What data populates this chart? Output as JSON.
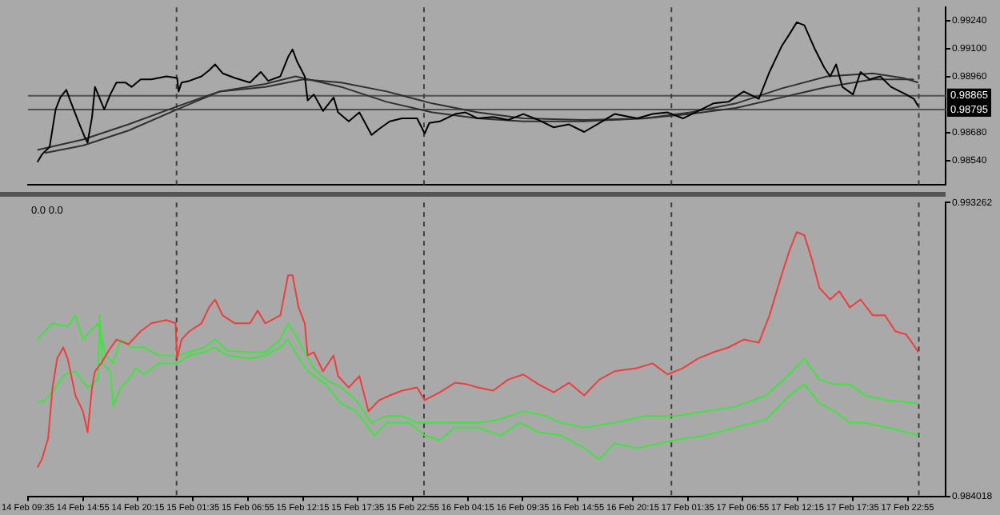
{
  "chart_data": [
    {
      "type": "line",
      "xlim": [
        "--02-14T09:35",
        "--02-18T02:36"
      ],
      "ylim": [
        0.98419,
        0.99308
      ],
      "tick_labels": "y",
      "xticks": [
        {
          "value": "--02-14T09:35",
          "label": null
        },
        {
          "value": "--02-18T02:36",
          "label": null
        }
      ],
      "yticks": [
        {
          "value": 0.9924,
          "label": "0.99240"
        },
        {
          "value": 0.991,
          "label": "0.99100"
        },
        {
          "value": 0.9896,
          "label": "0.98960"
        },
        {
          "value": 0.9868,
          "label": "0.98680"
        },
        {
          "value": 0.9854,
          "label": "0.98540"
        }
      ],
      "ref_lines": [
        {
          "axis": "y",
          "value": 0.98865,
          "label": "0.98865",
          "color": "#505050"
        },
        {
          "axis": "y",
          "value": 0.98795,
          "label": "0.98795",
          "color": "#505050"
        },
        {
          "axis": "x",
          "value": "--02-15T00:00",
          "line_style": "dashed",
          "color": "#404040"
        },
        {
          "axis": "x",
          "value": "--02-16T00:00",
          "line_style": "dashed",
          "color": "#404040"
        },
        {
          "axis": "x",
          "value": "--02-17T00:00",
          "line_style": "dashed",
          "color": "#404040"
        },
        {
          "axis": "x",
          "value": "--02-18T00:00",
          "line_style": "dashed",
          "color": "#404040"
        }
      ],
      "series": [
        {
          "color": "#000000",
          "x": [
            "--02-14T10:30",
            "--02-14T10:56",
            "--02-14T11:41",
            "--02-14T12:16",
            "--02-14T12:43",
            "--02-14T13:18",
            "--02-14T13:44",
            "--02-14T14:28",
            "--02-14T15:04",
            "--02-14T15:22",
            "--02-14T15:48",
            "--02-14T16:05",
            "--02-14T16:23",
            "--02-14T16:59",
            "--02-14T17:34",
            "--02-14T18:10",
            "--02-14T19:02",
            "--02-14T19:38",
            "--02-14T20:31",
            "--02-14T21:33",
            "--02-14T23:01",
            "--02-15T00:03",
            "--02-15T00:12",
            "--02-15T00:29",
            "--02-15T01:14",
            "--02-15T02:25",
            "--02-15T03:09",
            "--02-15T03:44",
            "--02-15T04:28",
            "--02-15T05:39",
            "--02-15T07:07",
            "--02-15T08:10",
            "--02-15T08:53",
            "--02-15T10:04",
            "--02-15T10:49",
            "--02-15T11:15",
            "--02-15T11:41",
            "--02-15T12:26",
            "--02-15T12:43",
            "--02-15T13:19",
            "--02-15T14:12",
            "--02-15T15:14",
            "--02-15T15:40",
            "--02-15T16:42",
            "--02-15T17:44",
            "--02-15T18:55",
            "--02-15T19:39",
            "--02-15T20:41",
            "--02-15T21:52",
            "--02-15T23:20",
            "--02-16T00:04",
            "--02-16T00:31",
            "--02-16T01:32",
            "--02-16T03:01",
            "--02-16T04:02",
            "--02-16T05:13",
            "--02-16T06:42",
            "--02-16T08:10",
            "--02-16T09:38",
            "--02-16T11:07",
            "--02-16T12:35",
            "--02-16T14:04",
            "--02-16T15:32",
            "--02-16T17:01",
            "--02-16T18:29",
            "--02-16T20:41",
            "--02-16T22:10",
            "--02-16T23:38",
            "--02-17T01:07",
            "--02-17T02:35",
            "--02-17T04:04",
            "--02-17T05:32",
            "--02-17T07:01",
            "--02-17T08:29",
            "--02-17T09:31",
            "--02-17T10:41",
            "--02-17T11:26",
            "--02-17T12:10",
            "--02-17T12:54",
            "--02-17T13:56",
            "--02-17T14:49",
            "--02-17T15:24",
            "--02-17T15:59",
            "--02-17T16:35",
            "--02-17T17:37",
            "--02-17T18:21",
            "--02-17T19:14",
            "--02-17T20:16",
            "--02-17T21:18",
            "--02-17T22:11",
            "--02-17T22:46",
            "--02-17T23:31",
            "--02-17T23:57"
          ],
          "values": [
            0.98532,
            0.9857,
            0.98608,
            0.98796,
            0.98856,
            0.98894,
            0.98834,
            0.98736,
            0.9866,
            0.9863,
            0.98758,
            0.98909,
            0.98871,
            0.98796,
            0.98871,
            0.98931,
            0.98931,
            0.98909,
            0.98947,
            0.98947,
            0.98962,
            0.98954,
            0.98886,
            0.98931,
            0.98939,
            0.98962,
            0.98992,
            0.99022,
            0.98977,
            0.98954,
            0.98931,
            0.98984,
            0.98939,
            0.98962,
            0.99059,
            0.99097,
            0.99037,
            0.98962,
            0.98841,
            0.98871,
            0.98788,
            0.98856,
            0.98781,
            0.98736,
            0.98781,
            0.98668,
            0.98698,
            0.98736,
            0.98751,
            0.98751,
            0.98675,
            0.98728,
            0.98736,
            0.98773,
            0.98781,
            0.98751,
            0.98758,
            0.98743,
            0.98773,
            0.98743,
            0.98706,
            0.98721,
            0.98683,
            0.98728,
            0.98773,
            0.98751,
            0.98773,
            0.98781,
            0.98751,
            0.98788,
            0.98826,
            0.98834,
            0.98886,
            0.98849,
            0.98984,
            0.99112,
            0.99172,
            0.99233,
            0.99218,
            0.99097,
            0.99007,
            0.98962,
            0.99022,
            0.98909,
            0.98871,
            0.98984,
            0.98947,
            0.98962,
            0.98909,
            0.98886,
            0.98871,
            0.98849,
            0.98811
          ]
        },
        {
          "color": "#303030",
          "x": [
            "--02-14T10:30",
            "--02-14T14:55",
            "--02-14T19:20",
            "--02-15T00:03",
            "--02-15T04:11",
            "--02-15T08:36",
            "--02-15T11:32",
            "--02-15T15:58",
            "--02-15T20:23",
            "--02-16T00:48",
            "--02-16T05:13",
            "--02-16T09:38",
            "--02-16T15:32",
            "--02-16T21:26",
            "--02-17T01:51",
            "--02-17T06:16",
            "--02-17T10:41",
            "--02-17T15:07",
            "--02-17T19:32",
            "--02-17T22:28",
            "--02-17T23:57"
          ],
          "values": [
            0.98593,
            0.98645,
            0.98721,
            0.98811,
            0.98886,
            0.98924,
            0.98962,
            0.98909,
            0.98834,
            0.98781,
            0.98751,
            0.98736,
            0.98736,
            0.98751,
            0.98781,
            0.98826,
            0.98901,
            0.98962,
            0.98977,
            0.98954,
            0.98931
          ]
        },
        {
          "color": "#303030",
          "x": [
            "--02-14T11:14",
            "--02-14T14:55",
            "--02-14T19:20",
            "--02-15T00:03",
            "--02-15T04:11",
            "--02-15T08:36",
            "--02-15T12:17",
            "--02-15T15:58",
            "--02-15T20:23",
            "--02-16T00:48",
            "--02-16T05:13",
            "--02-16T09:38",
            "--02-16T15:32",
            "--02-16T21:26",
            "--02-17T01:51",
            "--02-17T06:16",
            "--02-17T10:41",
            "--02-17T15:07",
            "--02-17T19:32",
            "--02-17T22:28",
            "--02-17T23:31"
          ],
          "values": [
            0.98578,
            0.98615,
            0.9869,
            0.98796,
            0.98886,
            0.98909,
            0.98947,
            0.98931,
            0.98886,
            0.98826,
            0.98781,
            0.98751,
            0.98743,
            0.98751,
            0.98773,
            0.98803,
            0.98856,
            0.98909,
            0.98947,
            0.98947,
            0.98947
          ]
        }
      ]
    },
    {
      "type": "line",
      "xlim": [
        "--02-14T09:35",
        "--02-18T02:36"
      ],
      "ylim": [
        0.984018,
        0.993262
      ],
      "yticks": [
        {
          "value": 0.993262,
          "label": "0.993262"
        },
        {
          "value": 0.984018,
          "label": "0.984018"
        }
      ],
      "xticks": [
        {
          "value": "--02-14T09:35",
          "label": "14 Feb 09:35"
        },
        {
          "value": "--02-14T14:55",
          "label": "14 Feb 14:55"
        },
        {
          "value": "--02-14T20:15",
          "label": "14 Feb 20:15"
        },
        {
          "value": "--02-15T01:35",
          "label": "15 Feb 01:35"
        },
        {
          "value": "--02-15T06:55",
          "label": "15 Feb 06:55"
        },
        {
          "value": "--02-15T12:15",
          "label": "15 Feb 12:15"
        },
        {
          "value": "--02-15T17:35",
          "label": "15 Feb 17:35"
        },
        {
          "value": "--02-15T22:55",
          "label": "15 Feb 22:55"
        },
        {
          "value": "--02-16T04:15",
          "label": "16 Feb 04:15"
        },
        {
          "value": "--02-16T09:35",
          "label": "16 Feb 09:35"
        },
        {
          "value": "--02-16T14:55",
          "label": "16 Feb 14:55"
        },
        {
          "value": "--02-16T20:15",
          "label": "16 Feb 20:15"
        },
        {
          "value": "--02-17T01:35",
          "label": "17 Feb 01:35"
        },
        {
          "value": "--02-17T06:55",
          "label": "17 Feb 06:55"
        },
        {
          "value": "--02-17T12:15",
          "label": "17 Feb 12:15"
        },
        {
          "value": "--02-17T17:35",
          "label": "17 Feb 17:35"
        },
        {
          "value": "--02-17T22:55",
          "label": "17 Feb 22:55"
        }
      ],
      "annotations": [
        "0.0 0.0"
      ],
      "ref_lines": [
        {
          "axis": "x",
          "value": "--02-15T00:00",
          "line_style": "dashed",
          "color": "#404040"
        },
        {
          "axis": "x",
          "value": "--02-16T00:00",
          "line_style": "dashed",
          "color": "#404040"
        },
        {
          "axis": "x",
          "value": "--02-17T00:00",
          "line_style": "dashed",
          "color": "#404040"
        },
        {
          "axis": "x",
          "value": "--02-18T00:00",
          "line_style": "dashed",
          "color": "#404040"
        }
      ],
      "series": [
        {
          "color": "#f03c3c",
          "x": [
            "--02-14T10:30",
            "--02-14T10:56",
            "--02-14T11:32",
            "--02-14T11:58",
            "--02-14T12:25",
            "--02-14T13:00",
            "--02-14T13:26",
            "--02-14T14:11",
            "--02-14T14:55",
            "--02-14T15:22",
            "--02-14T15:48",
            "--02-14T16:05",
            "--02-14T16:41",
            "--02-14T17:25",
            "--02-14T18:10",
            "--02-14T19:20",
            "--02-14T20:31",
            "--02-14T21:33",
            "--02-14T23:01",
            "--02-14T23:54",
            "--02-15T00:03",
            "--02-15T00:29",
            "--02-15T01:14",
            "--02-15T02:25",
            "--02-15T03:09",
            "--02-15T03:44",
            "--02-15T04:28",
            "--02-15T05:39",
            "--02-15T07:07",
            "--02-15T07:52",
            "--02-15T08:36",
            "--02-15T10:04",
            "--02-15T10:49",
            "--02-15T11:15",
            "--02-15T11:50",
            "--02-15T12:26",
            "--02-15T12:43",
            "--02-15T13:19",
            "--02-15T14:12",
            "--02-15T15:14",
            "--02-15T15:40",
            "--02-15T16:42",
            "--02-15T17:44",
            "--02-15T18:37",
            "--02-15T19:39",
            "--02-15T20:41",
            "--02-15T21:52",
            "--02-15T23:20",
            "--02-16T00:04",
            "--02-16T01:32",
            "--02-16T03:01",
            "--02-16T04:11",
            "--02-16T05:13",
            "--02-16T06:42",
            "--02-16T08:10",
            "--02-16T09:38",
            "--02-16T11:07",
            "--02-16T12:35",
            "--02-16T14:04",
            "--02-16T15:32",
            "--02-16T17:01",
            "--02-16T18:29",
            "--02-16T20:41",
            "--02-16T22:10",
            "--02-16T23:38",
            "--02-17T01:07",
            "--02-17T02:35",
            "--02-17T04:04",
            "--02-17T05:32",
            "--02-17T07:01",
            "--02-17T08:29",
            "--02-17T09:31",
            "--02-17T10:41",
            "--02-17T11:26",
            "--02-17T12:10",
            "--02-17T12:54",
            "--02-17T13:38",
            "--02-17T14:22",
            "--02-17T15:24",
            "--02-17T16:17",
            "--02-17T17:19",
            "--02-17T18:21",
            "--02-17T19:32",
            "--02-17T20:43",
            "--02-17T21:44",
            "--02-17T22:46",
            "--02-17T23:40",
            "--02-17T23:57"
          ],
          "values": [
            0.98492,
            0.98518,
            0.98583,
            0.98744,
            0.98835,
            0.9887,
            0.98835,
            0.98719,
            0.98669,
            0.98603,
            0.98744,
            0.98795,
            0.9882,
            0.9886,
            0.98895,
            0.9888,
            0.98921,
            0.98946,
            0.98956,
            0.98946,
            0.98835,
            0.98895,
            0.98921,
            0.98946,
            0.98996,
            0.99021,
            0.98971,
            0.98946,
            0.98946,
            0.98986,
            0.98946,
            0.98971,
            0.99097,
            0.99097,
            0.98996,
            0.98946,
            0.98845,
            0.98855,
            0.98795,
            0.98845,
            0.9878,
            0.98744,
            0.9878,
            0.98669,
            0.98704,
            0.98719,
            0.98734,
            0.98744,
            0.98704,
            0.98729,
            0.98759,
            0.98754,
            0.98744,
            0.98734,
            0.98769,
            0.98785,
            0.98754,
            0.98729,
            0.98759,
            0.98719,
            0.98769,
            0.98795,
            0.98805,
            0.9882,
            0.98785,
            0.98805,
            0.98835,
            0.98855,
            0.9887,
            0.98895,
            0.98885,
            0.98971,
            0.99097,
            0.99173,
            0.99233,
            0.99223,
            0.99147,
            0.99057,
            0.99021,
            0.99047,
            0.98996,
            0.99021,
            0.98971,
            0.98971,
            0.98921,
            0.98911,
            0.9887,
            0.98855
          ]
        },
        {
          "color": "#3ce63c",
          "x": [
            "--02-14T10:30",
            "--02-14T11:58",
            "--02-14T13:26",
            "--02-14T14:11",
            "--02-14T14:55",
            "--02-14T15:39",
            "--02-14T16:23",
            "--02-14T17:08",
            "--02-14T17:52",
            "--02-14T18:36",
            "--02-14T19:38",
            "--02-14T20:49",
            "--02-14T22:17",
            "--02-15T00:03",
            "--02-15T01:14",
            "--02-15T02:42",
            "--02-15T03:44",
            "--02-15T04:55",
            "--02-15T07:07",
            "--02-15T08:36",
            "--02-15T10:04",
            "--02-15T10:49",
            "--02-15T11:32",
            "--02-15T12:26",
            "--02-15T13:19",
            "--02-15T14:29",
            "--02-15T15:58",
            "--02-15T17:26",
            "--02-15T18:55",
            "--02-15T20:23",
            "--02-15T21:52",
            "--02-15T23:20",
            "--02-16T00:48",
            "--02-16T03:01",
            "--02-16T05:13",
            "--02-16T07:26",
            "--02-16T09:38",
            "--02-16T11:51",
            "--02-16T13:20",
            "--02-16T15:32",
            "--02-16T18:29",
            "--02-16T21:26",
            "--02-17T00:23",
            "--02-17T03:19",
            "--02-17T06:16",
            "--02-17T09:13",
            "--02-17T11:26",
            "--02-17T12:54",
            "--02-17T14:22",
            "--02-17T15:51",
            "--02-17T17:19",
            "--02-17T18:47",
            "--02-17T21:00",
            "--02-17T23:57"
          ],
          "values": [
            0.98895,
            0.98946,
            0.98936,
            0.98971,
            0.98895,
            0.98921,
            0.98946,
            0.98845,
            0.9882,
            0.98895,
            0.9887,
            0.9887,
            0.98845,
            0.98845,
            0.98855,
            0.9887,
            0.98895,
            0.9886,
            0.98855,
            0.98855,
            0.98895,
            0.98946,
            0.98911,
            0.98855,
            0.98805,
            0.98769,
            0.98744,
            0.98704,
            0.98633,
            0.98654,
            0.98654,
            0.98633,
            0.98633,
            0.98633,
            0.98633,
            0.98644,
            0.98669,
            0.98654,
            0.98633,
            0.98618,
            0.98633,
            0.98654,
            0.98654,
            0.98669,
            0.98684,
            0.98719,
            0.98785,
            0.98835,
            0.98769,
            0.98754,
            0.98754,
            0.98719,
            0.98704,
            0.98694
          ]
        },
        {
          "color": "#3ce63c",
          "x": [
            "--02-14T10:30",
            "--02-14T11:14",
            "--02-14T12:16",
            "--02-14T13:09",
            "--02-14T14:11",
            "--02-14T15:22",
            "--02-14T16:23",
            "--02-14T16:32",
            "--02-14T16:50",
            "--02-14T17:34",
            "--02-14T17:52",
            "--02-14T18:36",
            "--02-14T19:20",
            "--02-14T20:04",
            "--02-14T20:49",
            "--02-14T22:17",
            "--02-15T00:03",
            "--02-15T01:14",
            "--02-15T02:42",
            "--02-15T03:44",
            "--02-15T04:55",
            "--02-15T07:07",
            "--02-15T08:36",
            "--02-15T10:04",
            "--02-15T10:49",
            "--02-15T11:32",
            "--02-15T12:43",
            "--02-15T14:29",
            "--02-15T15:58",
            "--02-15T17:26",
            "--02-15T18:37",
            "--02-15T19:13",
            "--02-15T20:23",
            "--02-15T22:35",
            "--02-16T00:04",
            "--02-16T01:32",
            "--02-16T03:01",
            "--02-16T05:13",
            "--02-16T07:26",
            "--02-16T09:21",
            "--02-16T11:07",
            "--02-16T13:20",
            "--02-16T15:32",
            "--02-16T17:01",
            "--02-16T18:29",
            "--02-16T20:41",
            "--02-16T22:54",
            "--02-17T01:07",
            "--02-17T03:19",
            "--02-17T06:16",
            "--02-17T09:13",
            "--02-17T11:26",
            "--02-17T12:54",
            "--02-17T14:22",
            "--02-17T15:51",
            "--02-17T17:19",
            "--02-17T18:47",
            "--02-17T21:00",
            "--02-17T23:57"
          ],
          "values": [
            0.98694,
            0.98704,
            0.98744,
            0.98785,
            0.98795,
            0.98744,
            0.98769,
            0.98971,
            0.9882,
            0.98795,
            0.98684,
            0.98744,
            0.98769,
            0.98805,
            0.98785,
            0.9882,
            0.9882,
            0.98845,
            0.98855,
            0.9887,
            0.98845,
            0.98835,
            0.98845,
            0.9887,
            0.98895,
            0.98855,
            0.98795,
            0.98754,
            0.98694,
            0.98669,
            0.98618,
            0.98593,
            0.98633,
            0.98633,
            0.98593,
            0.98578,
            0.98618,
            0.98618,
            0.98593,
            0.98633,
            0.98603,
            0.98593,
            0.98553,
            0.98518,
            0.98568,
            0.98553,
            0.98568,
            0.98583,
            0.98593,
            0.98618,
            0.98644,
            0.98719,
            0.98754,
            0.98694,
            0.98669,
            0.98633,
            0.98633,
            0.98618,
            0.98593
          ]
        }
      ]
    }
  ]
}
